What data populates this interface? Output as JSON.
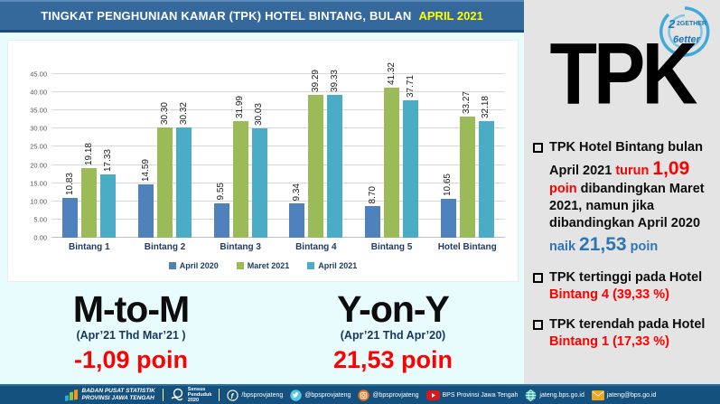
{
  "title": {
    "main": "TINGKAT PENGHUNIAN KAMAR (TPK) HOTEL BINTANG, BULAN",
    "highlight": "APRIL 2021"
  },
  "chart_data": {
    "type": "bar",
    "categories": [
      "Bintang 1",
      "Bintang 2",
      "Bintang 3",
      "Bintang 4",
      "Bintang 5",
      "Hotel Bintang"
    ],
    "series": [
      {
        "name": "April 2020",
        "color": "#4F81BD",
        "values": [
          10.83,
          14.59,
          9.55,
          9.34,
          8.7,
          10.65
        ]
      },
      {
        "name": "Maret 2021",
        "color": "#9BBB59",
        "values": [
          19.18,
          30.3,
          31.99,
          39.29,
          41.32,
          33.27
        ]
      },
      {
        "name": "April 2021",
        "color": "#4BACC6",
        "values": [
          17.33,
          30.32,
          30.03,
          39.33,
          37.71,
          32.18
        ]
      }
    ],
    "title": "",
    "xlabel": "",
    "ylabel": "",
    "ylim": [
      0,
      45
    ],
    "ytick_step": 5,
    "grid": true,
    "legend_position": "bottom",
    "value_labels": "rotated-2dp"
  },
  "compare": {
    "mtom": {
      "title": "M-to-M",
      "subtitle": "(Apr’21 Thd Mar’21 )",
      "value": "-1,09 poin"
    },
    "yony": {
      "title": "Y-on-Y",
      "subtitle": "(Apr’21  Thd Apr’20)",
      "value": "21,53 poin"
    }
  },
  "panel": {
    "heading": "TPK",
    "logo_text_top": "2GETHER",
    "logo_text_bottom": "6etter",
    "bullet1": {
      "t1": "TPK Hotel Bintang bulan April 2021 ",
      "t2": "turun ",
      "t3": "1,09",
      "t4": " poin ",
      "t5": "dibandingkan Maret 2021, namun jika dibandingkan April 2020 ",
      "t6": "naik ",
      "t7": "21,53",
      "t8": " poin"
    },
    "bullet2": {
      "t1": "TPK tertinggi pada Hotel ",
      "t2": "Bintang 4 (39,33 %)"
    },
    "bullet3": {
      "t1": "TPK terendah pada Hotel ",
      "t2": "Bintang 1 (17,33 %)"
    }
  },
  "footer": {
    "agency_line1": "BADAN PUSAT STATISTIK",
    "agency_line2": "PROVINSI JAWA TENGAH",
    "sensus_line1": "Sensus",
    "sensus_line2": "Penduduk",
    "sensus_line3": "2020",
    "facebook": "/bpsprovjateng",
    "twitter": "@bpsprovjateng",
    "instagram": "@bpsprovjateng",
    "youtube": "BPS Provinsi Jawa Tengah",
    "website": "jateng.bps.go.id",
    "email": "jateng@bps.go.id"
  },
  "colors": {
    "title_bar": "#35689B",
    "title_highlight": "#FFFF00",
    "bar_april2020": "#4F81BD",
    "bar_maret2021": "#9BBB59",
    "bar_april2021": "#4BACC6",
    "accent_red": "#FF0000",
    "accent_blue": "#2E75B6",
    "footer_bg": "#15517E",
    "left_bg": "#E8FBFD",
    "panel_bg": "#E4E4E4"
  }
}
